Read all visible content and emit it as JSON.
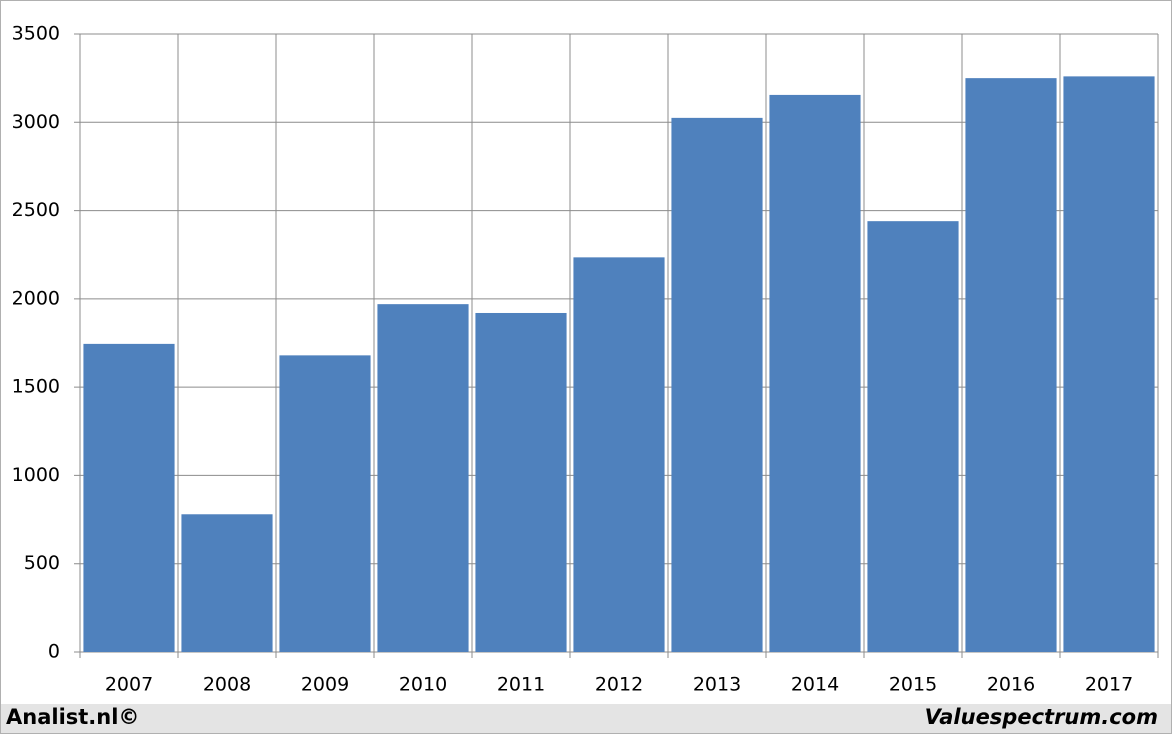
{
  "chart_data": {
    "type": "bar",
    "categories": [
      "2007",
      "2008",
      "2009",
      "2010",
      "2011",
      "2012",
      "2013",
      "2014",
      "2015",
      "2016",
      "2017"
    ],
    "values": [
      1745,
      780,
      1680,
      1970,
      1920,
      2235,
      3025,
      3155,
      2440,
      3250,
      3260
    ],
    "color": "#4f81bd",
    "ylim": [
      0,
      3500
    ],
    "yticks": [
      0,
      500,
      1000,
      1500,
      2000,
      2500,
      3000,
      3500
    ],
    "grid": true,
    "footer_left": "Analist.nl©",
    "footer_right": "Valuespectrum.com"
  }
}
